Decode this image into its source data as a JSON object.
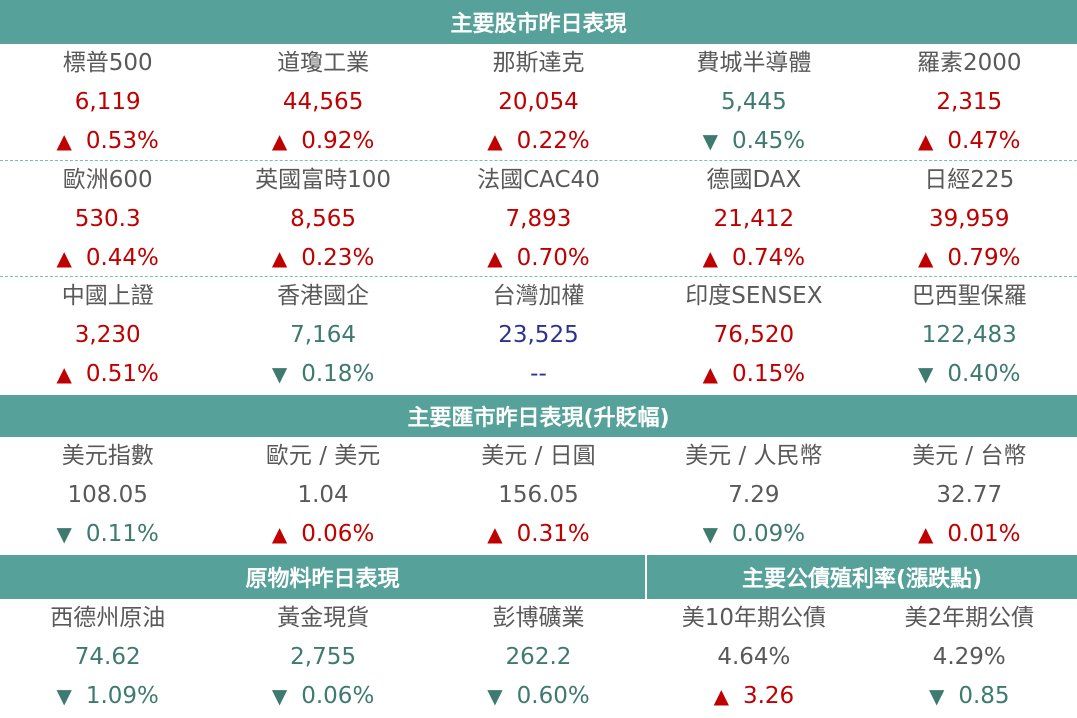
{
  "colors": {
    "header_bg": "#56a19a",
    "up": "#c00000",
    "down": "#3e7a6f",
    "neutral": "#595959",
    "flat": "#2e3192"
  },
  "stocks": {
    "title": "主要股市昨日表現",
    "groups": [
      [
        {
          "name": "標普500",
          "value": "6,119",
          "dir": "up",
          "change": "0.53%"
        },
        {
          "name": "道瓊工業",
          "value": "44,565",
          "dir": "up",
          "change": "0.92%"
        },
        {
          "name": "那斯達克",
          "value": "20,054",
          "dir": "up",
          "change": "0.22%"
        },
        {
          "name": "費城半導體",
          "value": "5,445",
          "dir": "down",
          "change": "0.45%"
        },
        {
          "name": "羅素2000",
          "value": "2,315",
          "dir": "up",
          "change": "0.47%"
        }
      ],
      [
        {
          "name": "歐洲600",
          "value": "530.3",
          "dir": "up",
          "change": "0.44%"
        },
        {
          "name": "英國富時100",
          "value": "8,565",
          "dir": "up",
          "change": "0.23%"
        },
        {
          "name": "法國CAC40",
          "value": "7,893",
          "dir": "up",
          "change": "0.70%"
        },
        {
          "name": "德國DAX",
          "value": "21,412",
          "dir": "up",
          "change": "0.74%"
        },
        {
          "name": "日經225",
          "value": "39,959",
          "dir": "up",
          "change": "0.79%"
        }
      ],
      [
        {
          "name": "中國上證",
          "value": "3,230",
          "dir": "up",
          "change": "0.51%"
        },
        {
          "name": "香港國企",
          "value": "7,164",
          "dir": "down",
          "change": "0.18%"
        },
        {
          "name": "台灣加權",
          "value": "23,525",
          "dir": "flat",
          "change": "--"
        },
        {
          "name": "印度SENSEX",
          "value": "76,520",
          "dir": "up",
          "change": "0.15%"
        },
        {
          "name": "巴西聖保羅",
          "value": "122,483",
          "dir": "down",
          "change": "0.40%"
        }
      ]
    ]
  },
  "fx": {
    "title": "主要匯市昨日表現(升貶幅)",
    "items": [
      {
        "name": "美元指數",
        "value": "108.05",
        "dir": "down",
        "change": "0.11%",
        "value_color": "neutral"
      },
      {
        "name": "歐元 / 美元",
        "value": "1.04",
        "dir": "up",
        "change": "0.06%",
        "value_color": "neutral"
      },
      {
        "name": "美元 / 日圓",
        "value": "156.05",
        "dir": "up",
        "change": "0.31%",
        "value_color": "neutral"
      },
      {
        "name": "美元 / 人民幣",
        "value": "7.29",
        "dir": "down",
        "change": "0.09%",
        "value_color": "neutral"
      },
      {
        "name": "美元 / 台幣",
        "value": "32.77",
        "dir": "up",
        "change": "0.01%",
        "value_color": "neutral"
      }
    ]
  },
  "commodities": {
    "title": "原物料昨日表現",
    "items": [
      {
        "name": "西德州原油",
        "value": "74.62",
        "dir": "down",
        "change": "1.09%"
      },
      {
        "name": "黃金現貨",
        "value": "2,755",
        "dir": "down",
        "change": "0.06%"
      },
      {
        "name": "彭博礦業",
        "value": "262.2",
        "dir": "down",
        "change": "0.60%"
      }
    ]
  },
  "bonds": {
    "title": "主要公債殖利率(漲跌點)",
    "items": [
      {
        "name": "美10年期公債",
        "value": "4.64%",
        "dir": "up",
        "change": "3.26",
        "value_color": "neutral"
      },
      {
        "name": "美2年期公債",
        "value": "4.29%",
        "dir": "down",
        "change": "0.85",
        "value_color": "neutral"
      }
    ]
  }
}
